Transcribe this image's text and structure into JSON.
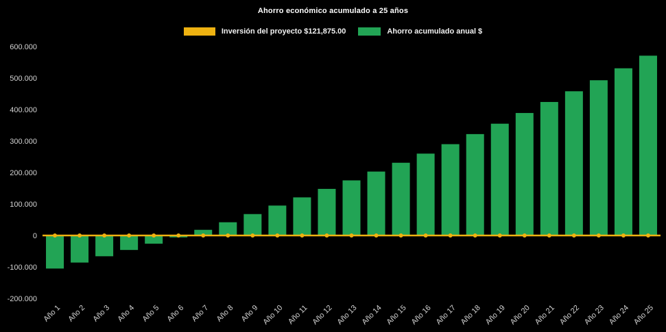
{
  "chart_data": {
    "type": "bar",
    "title": "Ahorro económico acumulado a 25 años",
    "xlabel": "",
    "ylabel": "",
    "background": "#000000",
    "grid": false,
    "legend_position": "top",
    "ylim": [
      -200000,
      600000
    ],
    "categories": [
      "Año 1",
      "Año 2",
      "Año 3",
      "Año 4",
      "Año 5",
      "Año 6",
      "Año 7",
      "Año 8",
      "Año 9",
      "Año 10",
      "Año 11",
      "Año 12",
      "Año 13",
      "Año 14",
      "Año 15",
      "Año 16",
      "Año 17",
      "Año 18",
      "Año 19",
      "Año 20",
      "Año 21",
      "Año 22",
      "Año 23",
      "Año 24",
      "Año 25"
    ],
    "y_ticks": [
      {
        "value": 600000,
        "label": "600.000"
      },
      {
        "value": 500000,
        "label": "500.000"
      },
      {
        "value": 400000,
        "label": "400.000"
      },
      {
        "value": 300000,
        "label": "300.000"
      },
      {
        "value": 200000,
        "label": "200.000"
      },
      {
        "value": 100000,
        "label": "100.000"
      },
      {
        "value": 0,
        "label": "0"
      },
      {
        "value": -100000,
        "label": "-100.000"
      },
      {
        "value": -200000,
        "label": "-200.000"
      }
    ],
    "series": [
      {
        "name": "Inversión del proyecto $121,875.00",
        "type": "line",
        "color": "#eeb211",
        "values": [
          0,
          0,
          0,
          0,
          0,
          0,
          0,
          0,
          0,
          0,
          0,
          0,
          0,
          0,
          0,
          0,
          0,
          0,
          0,
          0,
          0,
          0,
          0,
          0,
          0
        ]
      },
      {
        "name": "Ahorro acumulado anual $",
        "type": "bar",
        "color": "#22a455",
        "values": [
          -105000,
          -86000,
          -66000,
          -46000,
          -26000,
          -6000,
          18000,
          42000,
          68000,
          95000,
          121000,
          148000,
          175000,
          203000,
          231000,
          260000,
          290000,
          322000,
          355000,
          389000,
          424000,
          458000,
          493000,
          531000,
          571000
        ]
      }
    ]
  }
}
